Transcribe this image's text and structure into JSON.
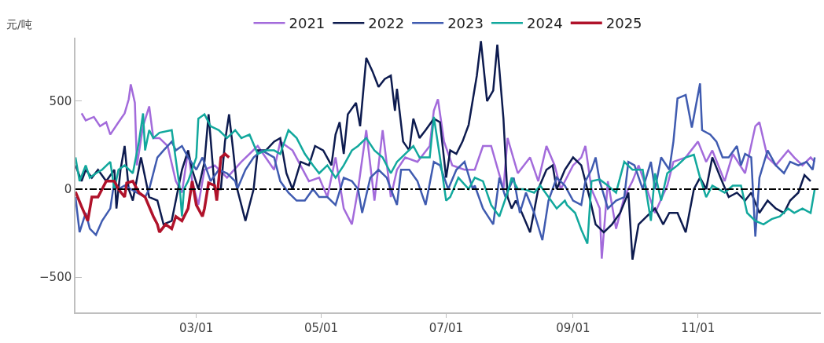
{
  "chart_data": {
    "type": "line",
    "ylabel": "元/吨",
    "xlim": [
      "--01-01",
      "--12-31"
    ],
    "xticks": [
      {
        "value": "--03-01",
        "label": "03/01"
      },
      {
        "value": "--05-01",
        "label": "05/01"
      },
      {
        "value": "--07-01",
        "label": "07/01"
      },
      {
        "value": "--09-01",
        "label": "09/01"
      },
      {
        "value": "--11-01",
        "label": "11/01"
      }
    ],
    "ylim": [
      -700,
      860
    ],
    "yticks": [
      -500,
      0,
      500
    ],
    "grid": false,
    "legend": "top",
    "marker": "none",
    "line_style": "solid",
    "ref_lines": [
      {
        "axis": "y",
        "value": 0,
        "color": "#000000",
        "line_style": "dashdot"
      }
    ],
    "series": [
      {
        "name": "2021",
        "color": "#a36bdb",
        "x": [
          "--01-04",
          "--01-06",
          "--01-10",
          "--01-13",
          "--01-16",
          "--01-18",
          "--01-22",
          "--01-25",
          "--01-27",
          "--01-28",
          "--01-30",
          "--01-31",
          "--02-03",
          "--02-06",
          "--02-08",
          "--02-11",
          "--02-15",
          "--02-19",
          "--02-22",
          "--02-25",
          "--02-27",
          "--03-02",
          "--03-05",
          "--03-10",
          "--03-16",
          "--03-23",
          "--03-31",
          "--04-08",
          "--04-11",
          "--04-17",
          "--04-25",
          "--04-30",
          "--05-04",
          "--05-08",
          "--05-12",
          "--05-16",
          "--05-19",
          "--05-23",
          "--05-27",
          "--05-31",
          "--06-04",
          "--06-07",
          "--06-11",
          "--06-17",
          "--06-23",
          "--06-25",
          "--06-27",
          "--06-30",
          "--07-04",
          "--07-10",
          "--07-15",
          "--07-19",
          "--07-23",
          "--07-29",
          "--07-31",
          "--08-05",
          "--08-11",
          "--08-15",
          "--08-19",
          "--08-23",
          "--08-26",
          "--09-01",
          "--09-05",
          "--09-07",
          "--09-10",
          "--09-14",
          "--09-15",
          "--09-18",
          "--09-22",
          "--09-26",
          "--09-30",
          "--10-03",
          "--10-07",
          "--10-11",
          "--10-17",
          "--10-20",
          "--10-26",
          "--11-01",
          "--11-05",
          "--11-08",
          "--11-14",
          "--11-18",
          "--11-24",
          "--11-29",
          "--12-01",
          "--12-05",
          "--12-09",
          "--12-15",
          "--12-18",
          "--12-22",
          "--12-26",
          "--12-28"
        ],
        "values": [
          430,
          390,
          410,
          357,
          380,
          310,
          380,
          430,
          510,
          595,
          490,
          135,
          357,
          470,
          290,
          290,
          245,
          45,
          -20,
          220,
          45,
          -90,
          110,
          135,
          65,
          155,
          245,
          110,
          270,
          220,
          45,
          65,
          -45,
          180,
          -110,
          -200,
          0,
          335,
          -65,
          335,
          -45,
          110,
          180,
          155,
          245,
          445,
          510,
          270,
          135,
          110,
          110,
          245,
          245,
          0,
          290,
          90,
          180,
          45,
          245,
          135,
          0,
          135,
          180,
          245,
          0,
          -110,
          -395,
          45,
          -225,
          -45,
          45,
          135,
          0,
          -135,
          20,
          155,
          180,
          270,
          155,
          220,
          45,
          200,
          90,
          357,
          380,
          180,
          135,
          220,
          180,
          135,
          180,
          155
        ]
      },
      {
        "name": "2022",
        "color": "#0d1b4f",
        "x": [
          "--01-01",
          "--01-04",
          "--01-06",
          "--01-09",
          "--01-12",
          "--01-16",
          "--01-20",
          "--01-21",
          "--01-23",
          "--01-25",
          "--01-27",
          "--01-29",
          "--02-02",
          "--02-06",
          "--02-10",
          "--02-13",
          "--02-17",
          "--02-22",
          "--02-25",
          "--02-27",
          "--03-02",
          "--03-05",
          "--03-07",
          "--03-10",
          "--03-13",
          "--03-15",
          "--03-17",
          "--03-19",
          "--03-21",
          "--03-25",
          "--03-29",
          "--03-31",
          "--04-04",
          "--04-08",
          "--04-11",
          "--04-14",
          "--04-17",
          "--04-21",
          "--04-25",
          "--04-28",
          "--05-02",
          "--05-06",
          "--05-08",
          "--05-10",
          "--05-12",
          "--05-14",
          "--05-18",
          "--05-20",
          "--05-23",
          "--05-26",
          "--05-29",
          "--06-01",
          "--06-04",
          "--06-06",
          "--06-07",
          "--06-10",
          "--06-13",
          "--06-15",
          "--06-18",
          "--06-21",
          "--06-25",
          "--06-28",
          "--07-01",
          "--07-03",
          "--07-06",
          "--07-09",
          "--07-12",
          "--07-16",
          "--07-18",
          "--07-21",
          "--07-24",
          "--07-26",
          "--07-29",
          "--07-31",
          "--08-02",
          "--08-04",
          "--08-07",
          "--08-11",
          "--08-15",
          "--08-19",
          "--08-22",
          "--08-24",
          "--08-28",
          "--09-01",
          "--09-05",
          "--09-09",
          "--09-12",
          "--09-16",
          "--09-20",
          "--09-24",
          "--09-28",
          "--09-30",
          "--10-03",
          "--10-07",
          "--10-11",
          "--10-15",
          "--10-18",
          "--10-22",
          "--10-26",
          "--10-30",
          "--11-02",
          "--11-05",
          "--11-08",
          "--11-12",
          "--11-16",
          "--11-20",
          "--11-24",
          "--11-27",
          "--12-01",
          "--12-05",
          "--12-09",
          "--12-13",
          "--12-16",
          "--12-20",
          "--12-23",
          "--12-26"
        ],
        "values": [
          135,
          45,
          110,
          65,
          110,
          45,
          110,
          -110,
          110,
          245,
          0,
          -65,
          180,
          -45,
          -65,
          -200,
          -180,
          110,
          220,
          110,
          0,
          155,
          425,
          0,
          0,
          270,
          425,
          220,
          0,
          -180,
          0,
          220,
          220,
          270,
          290,
          90,
          0,
          155,
          135,
          245,
          220,
          135,
          310,
          380,
          200,
          425,
          490,
          357,
          745,
          670,
          580,
          625,
          645,
          445,
          570,
          270,
          220,
          400,
          290,
          335,
          400,
          380,
          65,
          220,
          200,
          270,
          365,
          645,
          840,
          500,
          560,
          820,
          400,
          -45,
          -110,
          -65,
          -135,
          -245,
          0,
          110,
          135,
          0,
          110,
          180,
          135,
          -45,
          -200,
          -245,
          -200,
          -135,
          -20,
          -400,
          -200,
          -155,
          -110,
          -200,
          -135,
          -135,
          -245,
          0,
          65,
          0,
          180,
          65,
          -45,
          -20,
          -65,
          -20,
          -135,
          -65,
          -110,
          -135,
          -65,
          -20,
          80,
          45
        ]
      },
      {
        "name": "2023",
        "color": "#3f5bb0",
        "x": [
          "--01-01",
          "--01-03",
          "--01-06",
          "--01-08",
          "--01-11",
          "--01-14",
          "--01-18",
          "--01-20",
          "--01-22",
          "--01-25",
          "--01-31",
          "--02-04",
          "--02-06",
          "--02-10",
          "--02-13",
          "--02-17",
          "--02-19",
          "--02-22",
          "--02-25",
          "--03-01",
          "--03-04",
          "--03-08",
          "--03-12",
          "--03-16",
          "--03-20",
          "--03-21",
          "--03-25",
          "--03-29",
          "--04-02",
          "--04-08",
          "--04-11",
          "--04-15",
          "--04-19",
          "--04-23",
          "--04-27",
          "--04-30",
          "--05-04",
          "--05-08",
          "--05-12",
          "--05-16",
          "--05-19",
          "--05-21",
          "--05-25",
          "--05-29",
          "--06-02",
          "--06-04",
          "--06-07",
          "--06-09",
          "--06-13",
          "--06-17",
          "--06-21",
          "--06-25",
          "--06-28",
          "--07-02",
          "--07-06",
          "--07-10",
          "--07-14",
          "--07-15",
          "--07-19",
          "--07-24",
          "--07-27",
          "--07-30",
          "--08-03",
          "--08-06",
          "--08-09",
          "--08-13",
          "--08-17",
          "--08-20",
          "--08-24",
          "--08-28",
          "--09-01",
          "--09-05",
          "--09-07",
          "--09-10",
          "--09-12",
          "--09-14",
          "--09-18",
          "--09-22",
          "--09-26",
          "--09-28",
          "--10-01",
          "--10-05",
          "--10-09",
          "--10-11",
          "--10-14",
          "--10-18",
          "--10-20",
          "--10-22",
          "--10-26",
          "--10-29",
          "--11-02",
          "--11-03",
          "--11-07",
          "--11-10",
          "--11-13",
          "--11-16",
          "--11-20",
          "--11-22",
          "--11-24",
          "--11-27",
          "--11-29",
          "--12-01",
          "--12-05",
          "--12-09",
          "--12-13",
          "--12-16",
          "--12-20",
          "--12-24",
          "--12-27",
          "--12-28"
        ],
        "values": [
          -45,
          -245,
          -135,
          -225,
          -260,
          -180,
          -110,
          45,
          0,
          20,
          -20,
          -45,
          0,
          180,
          220,
          270,
          220,
          245,
          180,
          110,
          180,
          45,
          110,
          90,
          45,
          0,
          110,
          180,
          220,
          180,
          45,
          -20,
          -65,
          -65,
          0,
          -45,
          -45,
          -90,
          65,
          45,
          0,
          -135,
          65,
          110,
          65,
          0,
          -90,
          110,
          110,
          45,
          -90,
          155,
          135,
          0,
          110,
          155,
          0,
          20,
          -110,
          -200,
          65,
          -45,
          65,
          -135,
          -20,
          -135,
          -290,
          -65,
          65,
          20,
          -65,
          -90,
          45,
          110,
          180,
          45,
          -110,
          -65,
          -45,
          155,
          135,
          0,
          155,
          0,
          180,
          110,
          270,
          515,
          535,
          350,
          600,
          335,
          310,
          270,
          180,
          180,
          245,
          135,
          200,
          180,
          -270,
          65,
          220,
          135,
          90,
          155,
          135,
          155,
          110,
          180
        ]
      },
      {
        "name": "2024",
        "color": "#12a89d",
        "x": [
          "--01-01",
          "--01-03",
          "--01-06",
          "--01-08",
          "--01-11",
          "--01-14",
          "--01-18",
          "--01-20",
          "--01-22",
          "--01-25",
          "--01-29",
          "--02-01",
          "--02-03",
          "--02-04",
          "--02-06",
          "--02-08",
          "--02-11",
          "--02-17",
          "--02-21",
          "--02-22",
          "--02-23",
          "--02-25",
          "--03-01",
          "--03-02",
          "--03-05",
          "--03-08",
          "--03-12",
          "--03-16",
          "--03-20",
          "--03-23",
          "--03-27",
          "--03-31",
          "--04-04",
          "--04-08",
          "--04-11",
          "--04-15",
          "--04-19",
          "--04-23",
          "--04-27",
          "--04-30",
          "--05-04",
          "--05-08",
          "--05-12",
          "--05-16",
          "--05-19",
          "--05-23",
          "--05-27",
          "--05-31",
          "--06-04",
          "--06-07",
          "--06-11",
          "--06-15",
          "--06-18",
          "--06-23",
          "--06-25",
          "--06-28",
          "--07-01",
          "--07-03",
          "--07-07",
          "--07-12",
          "--07-15",
          "--07-19",
          "--07-23",
          "--07-27",
          "--07-31",
          "--08-02",
          "--08-05",
          "--08-08",
          "--08-13",
          "--08-16",
          "--08-20",
          "--08-24",
          "--08-28",
          "--08-29",
          "--09-02",
          "--09-05",
          "--09-08",
          "--09-10",
          "--09-14",
          "--09-18",
          "--09-22",
          "--09-26",
          "--09-30",
          "--10-05",
          "--10-09",
          "--10-11",
          "--10-14",
          "--10-17",
          "--10-22",
          "--10-26",
          "--10-30",
          "--11-02",
          "--11-05",
          "--11-08",
          "--11-14",
          "--11-18",
          "--11-22",
          "--11-25",
          "--11-29",
          "--12-03",
          "--12-07",
          "--12-11",
          "--12-15",
          "--12-18",
          "--12-22",
          "--12-26",
          "--12-28"
        ],
        "values": [
          180,
          45,
          135,
          65,
          90,
          110,
          155,
          0,
          110,
          135,
          90,
          270,
          430,
          220,
          335,
          290,
          320,
          335,
          0,
          -155,
          0,
          45,
          180,
          400,
          425,
          357,
          335,
          290,
          335,
          290,
          310,
          200,
          220,
          220,
          200,
          335,
          290,
          200,
          135,
          90,
          135,
          65,
          135,
          220,
          245,
          290,
          220,
          180,
          90,
          155,
          200,
          245,
          180,
          180,
          410,
          180,
          -65,
          -45,
          65,
          0,
          65,
          45,
          -90,
          -155,
          -20,
          65,
          0,
          0,
          -20,
          20,
          -45,
          -110,
          -65,
          -90,
          -135,
          -230,
          -310,
          45,
          55,
          20,
          -20,
          155,
          110,
          110,
          -180,
          90,
          -65,
          90,
          135,
          180,
          195,
          65,
          -45,
          20,
          -20,
          20,
          20,
          -135,
          -180,
          -200,
          -170,
          -155,
          -110,
          -135,
          -110,
          -135,
          0
        ]
      },
      {
        "name": "2025",
        "color": "#b0122a",
        "x": [
          "--01-01",
          "--01-04",
          "--01-07",
          "--01-09",
          "--01-12",
          "--01-14",
          "--01-16",
          "--01-20",
          "--01-22",
          "--01-25",
          "--01-26",
          "--01-29",
          "--02-01",
          "--02-04",
          "--02-08",
          "--02-10",
          "--02-11",
          "--02-14",
          "--02-17",
          "--02-19",
          "--02-22",
          "--02-25",
          "--02-27",
          "--03-01",
          "--03-04",
          "--03-05",
          "--03-07",
          "--03-10",
          "--03-11",
          "--03-13",
          "--03-15",
          "--03-17"
        ],
        "values": [
          -15,
          -100,
          -180,
          -45,
          -45,
          0,
          45,
          45,
          0,
          -45,
          35,
          45,
          -20,
          -45,
          -155,
          -200,
          -245,
          -200,
          -225,
          -155,
          -180,
          -110,
          45,
          -90,
          -155,
          -110,
          35,
          20,
          -65,
          180,
          200,
          180
        ]
      }
    ]
  }
}
